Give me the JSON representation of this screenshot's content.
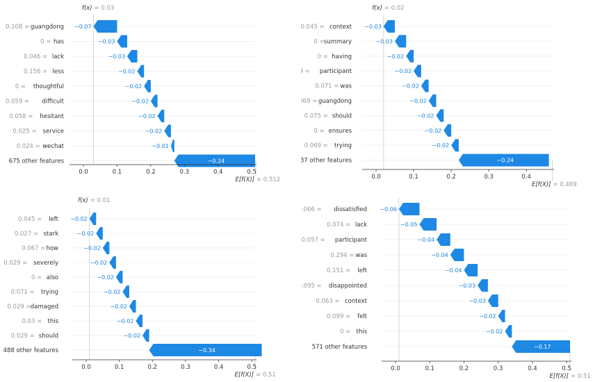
{
  "colors": {
    "negative": "#1e88e5",
    "text_light": "#999999",
    "text_dark": "#333333",
    "axis": "#333333",
    "grid": "#e6e6e6"
  },
  "chart_data": [
    {
      "type": "waterfall",
      "fx_label": "f(x)",
      "fx_value": "= 0.03",
      "expected_label": "E[f(X)]",
      "expected_value": "= 0.512",
      "fx": 0.03,
      "base": 0.512,
      "xlim": [
        -0.02,
        0.51
      ],
      "xticks": [
        "0.0",
        "0.1",
        "0.2",
        "0.3",
        "0.4",
        "0.5"
      ],
      "features": [
        {
          "value": "0.108 =",
          "name": "guangdong",
          "contribution": -0.07,
          "label": "−0.07"
        },
        {
          "value": "0 =",
          "name": "has",
          "contribution": -0.03,
          "label": "−0.03"
        },
        {
          "value": "0.046 =",
          "name": "lack",
          "contribution": -0.03,
          "label": "−0.03"
        },
        {
          "value": "0.156 =",
          "name": "less",
          "contribution": -0.02,
          "label": "−0.02"
        },
        {
          "value": "0 =",
          "name": "thoughtful",
          "contribution": -0.02,
          "label": "−0.02"
        },
        {
          "value": "0.059 =",
          "name": "difficult",
          "contribution": -0.02,
          "label": "−0.02"
        },
        {
          "value": "0.058 =",
          "name": "hesitant",
          "contribution": -0.02,
          "label": "−0.02"
        },
        {
          "value": "0.025 =",
          "name": "service",
          "contribution": -0.02,
          "label": "−0.02"
        },
        {
          "value": "0.024 =",
          "name": "wechat",
          "contribution": -0.01,
          "label": "−0.01"
        },
        {
          "value": "",
          "name": "675 other features",
          "contribution": -0.24,
          "label": "−0.24"
        }
      ]
    },
    {
      "type": "waterfall",
      "fx_label": "f(x)",
      "fx_value": "= 0.02",
      "expected_label": "E[f(X)]",
      "expected_value": "= 0.469",
      "fx": 0.02,
      "base": 0.469,
      "xlim": [
        -0.02,
        0.47
      ],
      "xticks": [
        "0.0",
        "0.1",
        "0.2",
        "0.3",
        "0.4"
      ],
      "features": [
        {
          "value": "0.045 =",
          "name": "context",
          "contribution": -0.03,
          "label": "−0.03"
        },
        {
          "value": "0 =",
          "name": "summary",
          "contribution": -0.03,
          "label": "−0.03"
        },
        {
          "value": "0 =",
          "name": "having",
          "contribution": -0.02,
          "label": "−0.02"
        },
        {
          "value": "0.039 =",
          "name": "participant",
          "contribution": -0.02,
          "label": "−0.02"
        },
        {
          "value": "0.071 =",
          "name": "was",
          "contribution": -0.02,
          "label": "−0.02"
        },
        {
          "value": "0.069 =",
          "name": "guangdong",
          "contribution": -0.02,
          "label": "−0.02"
        },
        {
          "value": "0.075 =",
          "name": "should",
          "contribution": -0.02,
          "label": "−0.02"
        },
        {
          "value": "0 =",
          "name": "ensures",
          "contribution": -0.02,
          "label": "−0.02"
        },
        {
          "value": "0.069 =",
          "name": "trying",
          "contribution": -0.02,
          "label": "−0.02"
        },
        {
          "value": "",
          "name": "937 other features",
          "contribution": -0.24,
          "label": "−0.24"
        }
      ]
    },
    {
      "type": "waterfall",
      "fx_label": "f(x)",
      "fx_value": "= 0.01",
      "expected_label": "E[f(X)]",
      "expected_value": "= 0.51",
      "fx": 0.01,
      "base": 0.51,
      "xlim": [
        -0.01,
        0.51
      ],
      "xticks": [
        "0.0",
        "0.1",
        "0.2",
        "0.3",
        "0.4",
        "0.5"
      ],
      "features": [
        {
          "value": "0.045 =",
          "name": "left",
          "contribution": -0.02,
          "label": "−0.02"
        },
        {
          "value": "0.027 =",
          "name": "stark",
          "contribution": -0.02,
          "label": "−0.02"
        },
        {
          "value": "0.067 =",
          "name": "how",
          "contribution": -0.02,
          "label": "−0.02"
        },
        {
          "value": "0.029 =",
          "name": "severely",
          "contribution": -0.02,
          "label": "−0.02"
        },
        {
          "value": "0 =",
          "name": "also",
          "contribution": -0.02,
          "label": "−0.02"
        },
        {
          "value": "0.071 =",
          "name": "trying",
          "contribution": -0.02,
          "label": "−0.02"
        },
        {
          "value": "0.029 =",
          "name": "damaged",
          "contribution": -0.02,
          "label": "−0.02"
        },
        {
          "value": "0.03 =",
          "name": "this",
          "contribution": -0.02,
          "label": "−0.02"
        },
        {
          "value": "0.029 =",
          "name": "should",
          "contribution": -0.02,
          "label": "−0.02"
        },
        {
          "value": "",
          "name": "488 other features",
          "contribution": -0.34,
          "label": "−0.34"
        }
      ]
    },
    {
      "type": "waterfall",
      "fx_label": "",
      "fx_value": "",
      "expected_label": "E[f(X)]",
      "expected_value": "= 0.51",
      "fx": 0.01,
      "base": 0.51,
      "xlim": [
        -0.01,
        0.51
      ],
      "xticks": [
        "0.0",
        "0.1",
        "0.2",
        "0.3",
        "0.4",
        "0.5"
      ],
      "features": [
        {
          "value": "0.066 =",
          "name": "dissatisfied",
          "contribution": -0.06,
          "label": "−0.06"
        },
        {
          "value": "0.074 =",
          "name": "lack",
          "contribution": -0.05,
          "label": "−0.05"
        },
        {
          "value": "0.057 =",
          "name": "participant",
          "contribution": -0.04,
          "label": "−0.04"
        },
        {
          "value": "0.294 =",
          "name": "was",
          "contribution": -0.04,
          "label": "−0.04"
        },
        {
          "value": "0.151 =",
          "name": "left",
          "contribution": -0.04,
          "label": "−0.04"
        },
        {
          "value": "0.095 =",
          "name": "disappointed",
          "contribution": -0.03,
          "label": "−0.03"
        },
        {
          "value": "0.063 =",
          "name": "context",
          "contribution": -0.03,
          "label": "−0.03"
        },
        {
          "value": "0.099 =",
          "name": "felt",
          "contribution": -0.02,
          "label": "−0.02"
        },
        {
          "value": "0 =",
          "name": "this",
          "contribution": -0.02,
          "label": "−0.02"
        },
        {
          "value": "",
          "name": "571 other features",
          "contribution": -0.17,
          "label": "−0.17"
        }
      ]
    }
  ]
}
